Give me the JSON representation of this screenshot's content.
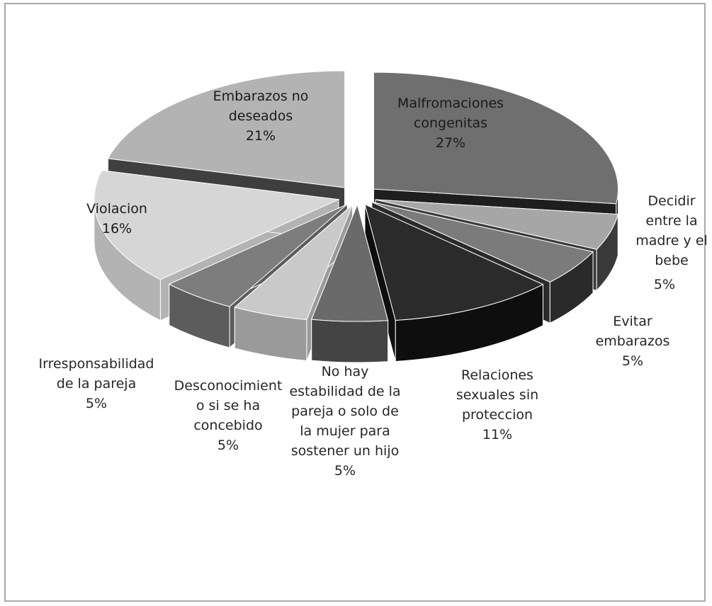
{
  "chart_data": {
    "type": "pie",
    "three_d": true,
    "exploded": true,
    "title": "",
    "legend": "none",
    "slices": [
      {
        "label_lines": [
          "Malfromaciones",
          "congenitas"
        ],
        "value_label": "27%",
        "value": 27,
        "top": "#6f6f6f",
        "side": "#1e1e1e"
      },
      {
        "label_lines": [
          "Decidir",
          "entre la",
          "madre y el",
          "bebe"
        ],
        "value_label": "5%",
        "value": 5,
        "top": "#a6a6a6",
        "side": "#3a3a3a"
      },
      {
        "label_lines": [
          "Evitar",
          "embarazos"
        ],
        "value_label": "5%",
        "value": 5,
        "top": "#7b7b7b",
        "side": "#2a2a2a"
      },
      {
        "label_lines": [
          "Relaciones",
          "sexuales sin",
          "proteccion"
        ],
        "value_label": "11%",
        "value": 11,
        "top": "#2b2b2b",
        "side": "#0e0e0e"
      },
      {
        "label_lines": [
          "No hay",
          "estabilidad de la",
          "pareja o solo de",
          "la mujer para",
          "sostener un hijo"
        ],
        "value_label": "5%",
        "value": 5,
        "top": "#6a6a6a",
        "side": "#444444"
      },
      {
        "label_lines": [
          "Desconocimient",
          "o si se ha",
          "concebido"
        ],
        "value_label": "5%",
        "value": 5,
        "top": "#c9c9c9",
        "side": "#9a9a9a"
      },
      {
        "label_lines": [
          "Irresponsabilidad",
          "de la pareja"
        ],
        "value_label": "5%",
        "value": 5,
        "top": "#7d7d7d",
        "side": "#5c5c5c"
      },
      {
        "label_lines": [
          "Violacion"
        ],
        "value_label": "16%",
        "value": 16,
        "top": "#d6d6d6",
        "side": "#b3b3b3"
      },
      {
        "label_lines": [
          "Embarazos no",
          "deseados"
        ],
        "value_label": "21%",
        "value": 21,
        "top": "#b3b3b3",
        "side": "#3f3f3f"
      }
    ]
  }
}
